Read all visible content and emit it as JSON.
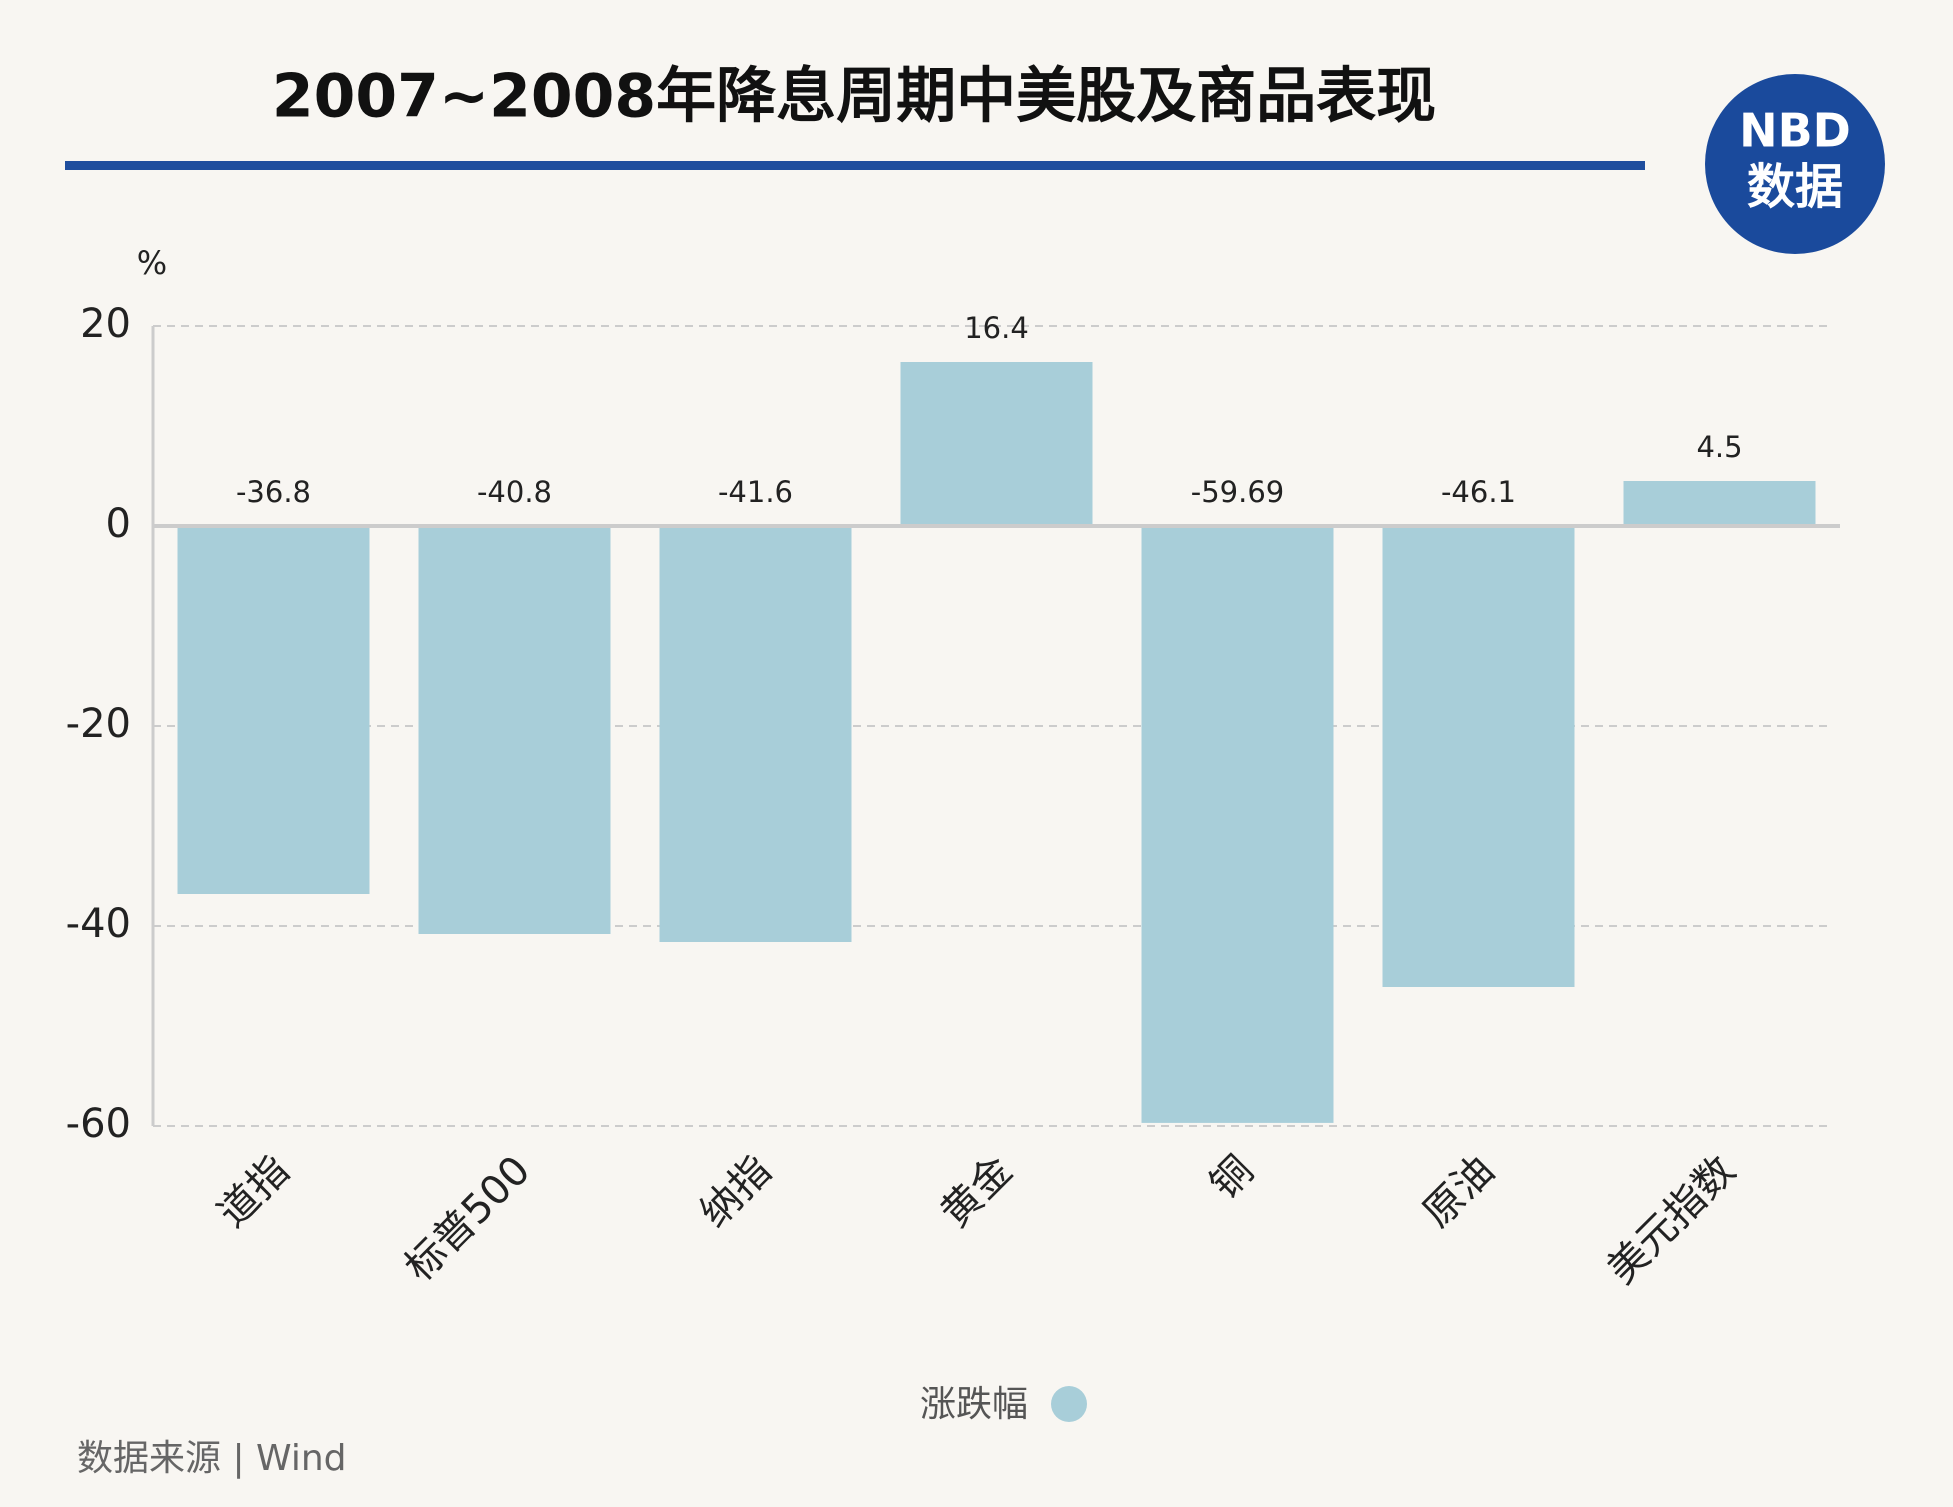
{
  "chart_data": {
    "type": "bar",
    "title": "2007~2008年降息周期中美股及商品表现",
    "y_label": "%",
    "categories": [
      "道指",
      "标普500",
      "纳指",
      "黄金",
      "铜",
      "原油",
      "美元指数"
    ],
    "series": [
      {
        "name": "涨跌幅",
        "color": "#a8ced9",
        "values": [
          -36.8,
          -40.8,
          -41.6,
          16.4,
          -59.69,
          -46.1,
          4.5
        ]
      }
    ],
    "ylim": [
      -60,
      20
    ],
    "yticks": [
      -60,
      -40,
      -20,
      0,
      20
    ],
    "grid": true,
    "logo": {
      "brand": "NBD",
      "tag": "数据"
    },
    "source": "数据来源 | Wind"
  }
}
